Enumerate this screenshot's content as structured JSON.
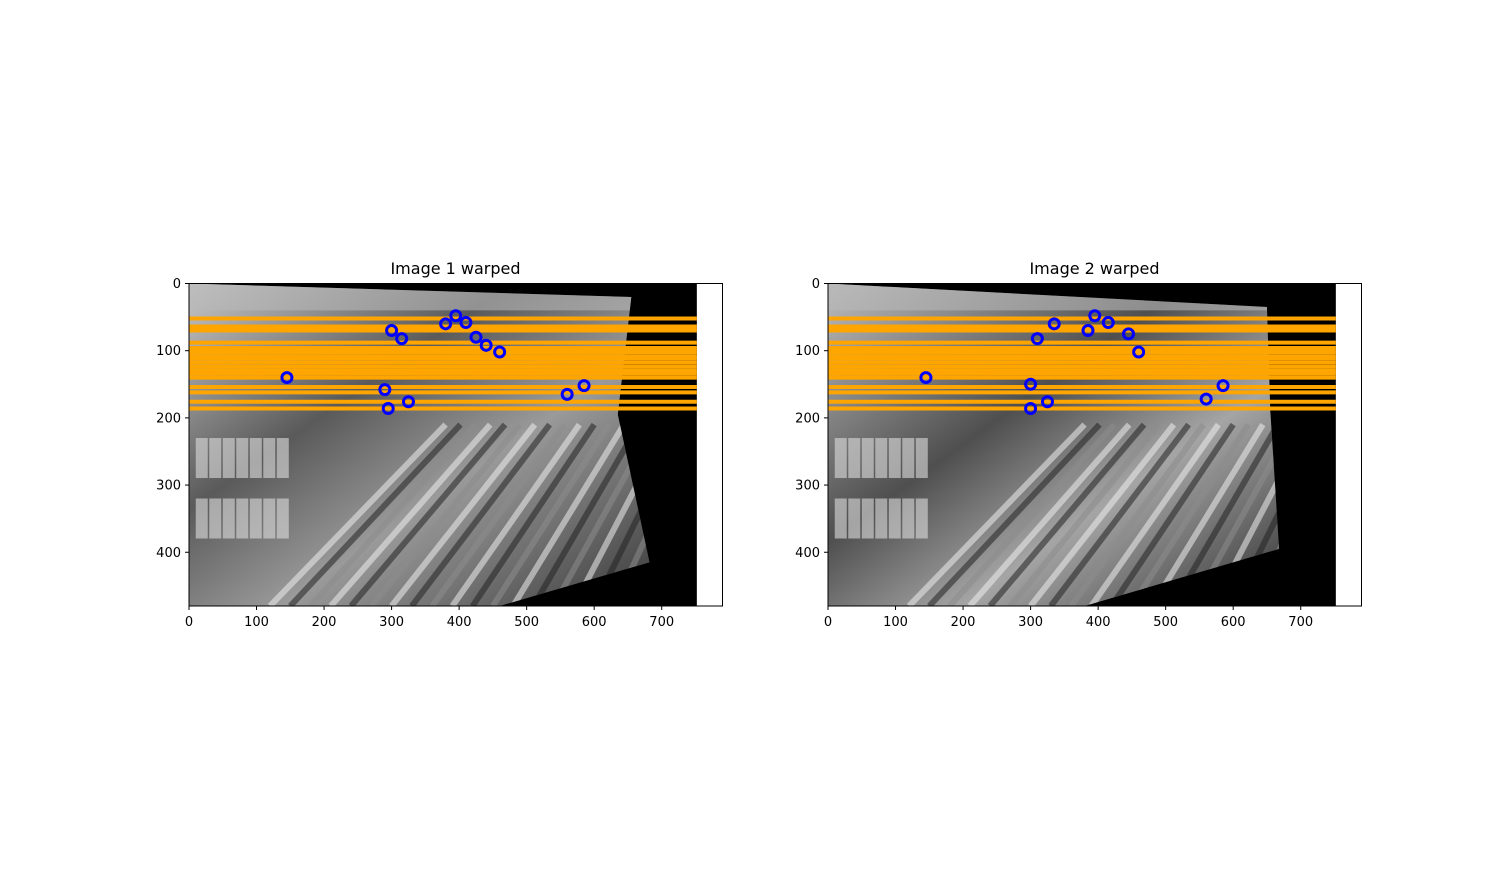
{
  "figure": {
    "background": "#ffffff"
  },
  "colors": {
    "epipolar_line": "#ffa500",
    "keypoint": "#0000ff",
    "frame": "#000000"
  },
  "chart_data": [
    {
      "type": "image",
      "title": "Image 1 warped",
      "xlabel": "",
      "ylabel": "",
      "xlim": [
        0,
        790
      ],
      "ylim": [
        480,
        0
      ],
      "xticks": [
        "0",
        "100",
        "200",
        "300",
        "400",
        "500",
        "600",
        "700"
      ],
      "yticks": [
        "0",
        "100",
        "200",
        "300",
        "400"
      ],
      "image_extent_x": [
        0,
        752
      ],
      "warped_corners": [
        [
          0,
          0
        ],
        [
          655,
          20
        ],
        [
          635,
          195
        ],
        [
          682,
          415
        ],
        [
          460,
          480
        ],
        [
          0,
          480
        ]
      ],
      "horizontal_lines_y": [
        52,
        64,
        70,
        88,
        96,
        102,
        108,
        112,
        118,
        124,
        130,
        134,
        140,
        154,
        162,
        176,
        186
      ],
      "keypoints": [
        {
          "x": 300,
          "y": 70
        },
        {
          "x": 315,
          "y": 82
        },
        {
          "x": 380,
          "y": 60
        },
        {
          "x": 395,
          "y": 48
        },
        {
          "x": 410,
          "y": 58
        },
        {
          "x": 425,
          "y": 80
        },
        {
          "x": 440,
          "y": 92
        },
        {
          "x": 460,
          "y": 102
        },
        {
          "x": 145,
          "y": 140
        },
        {
          "x": 290,
          "y": 158
        },
        {
          "x": 295,
          "y": 186
        },
        {
          "x": 325,
          "y": 176
        },
        {
          "x": 560,
          "y": 165
        },
        {
          "x": 585,
          "y": 152
        }
      ]
    },
    {
      "type": "image",
      "title": "Image 2 warped",
      "xlabel": "",
      "ylabel": "",
      "xlim": [
        0,
        790
      ],
      "ylim": [
        480,
        0
      ],
      "xticks": [
        "0",
        "100",
        "200",
        "300",
        "400",
        "500",
        "600",
        "700"
      ],
      "yticks": [
        "0",
        "100",
        "200",
        "300",
        "400"
      ],
      "image_extent_x": [
        0,
        752
      ],
      "warped_corners": [
        [
          0,
          0
        ],
        [
          650,
          35
        ],
        [
          655,
          190
        ],
        [
          668,
          395
        ],
        [
          380,
          480
        ],
        [
          0,
          480
        ]
      ],
      "horizontal_lines_y": [
        52,
        64,
        70,
        88,
        96,
        102,
        108,
        112,
        118,
        124,
        130,
        134,
        140,
        154,
        162,
        176,
        186
      ],
      "keypoints": [
        {
          "x": 300,
          "y": 150
        },
        {
          "x": 310,
          "y": 82
        },
        {
          "x": 335,
          "y": 60
        },
        {
          "x": 385,
          "y": 70
        },
        {
          "x": 395,
          "y": 48
        },
        {
          "x": 415,
          "y": 58
        },
        {
          "x": 445,
          "y": 75
        },
        {
          "x": 460,
          "y": 102
        },
        {
          "x": 145,
          "y": 140
        },
        {
          "x": 300,
          "y": 186
        },
        {
          "x": 325,
          "y": 176
        },
        {
          "x": 560,
          "y": 172
        },
        {
          "x": 585,
          "y": 152
        }
      ]
    }
  ]
}
